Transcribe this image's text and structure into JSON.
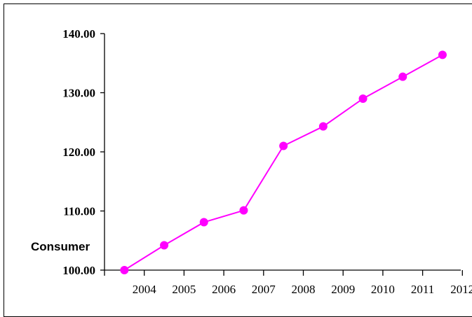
{
  "chart_data": {
    "type": "line",
    "title": "",
    "xlabel": "",
    "ylabel": "Consumer",
    "categories": [
      "2004",
      "2005",
      "2006",
      "2007",
      "2008",
      "2009",
      "2010",
      "2011",
      "2012"
    ],
    "y_ticks": [
      "100.00",
      "110.00",
      "120.00",
      "130.00",
      "140.00"
    ],
    "ylim": [
      100,
      140
    ],
    "series": [
      {
        "values": [
          100.0,
          104.2,
          108.1,
          110.1,
          121.0,
          124.3,
          129.0,
          132.7,
          136.4
        ],
        "color": "#ff00ff"
      }
    ],
    "grid": false,
    "legend": "none"
  }
}
